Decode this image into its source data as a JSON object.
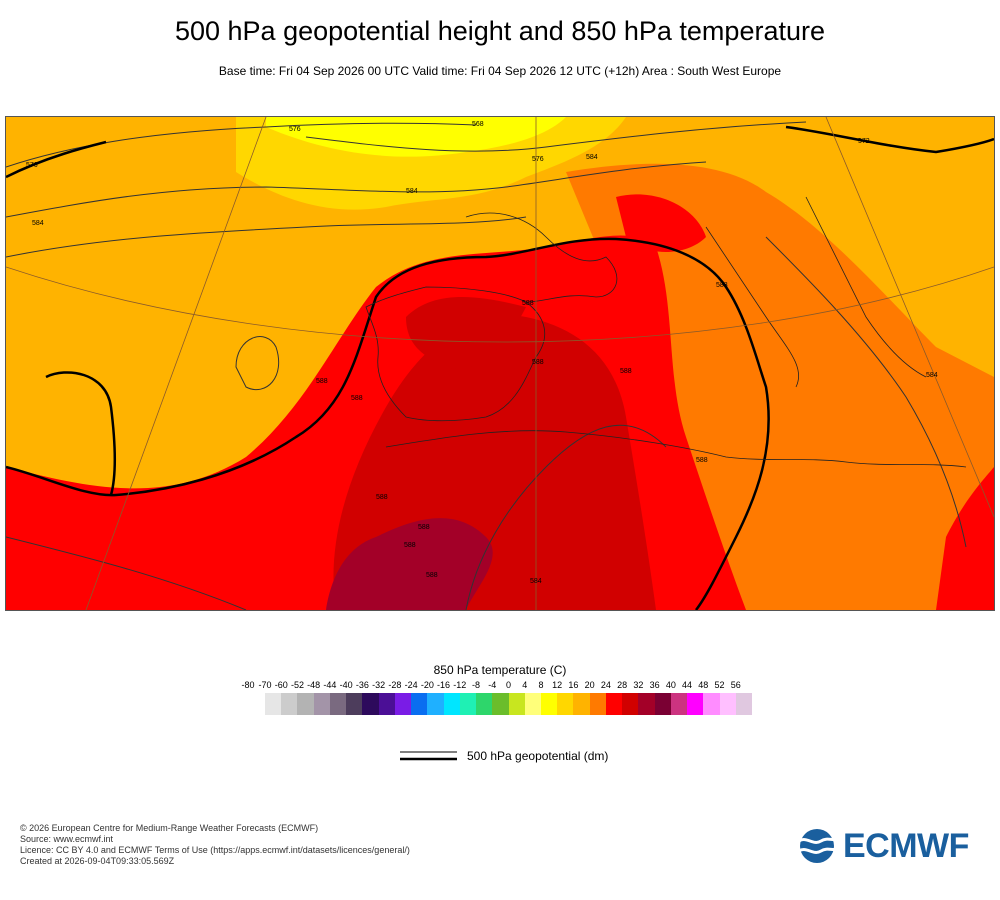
{
  "title": "500 hPa geopotential height and 850 hPa temperature",
  "subtitle": "Base time: Fri 04 Sep 2026 00 UTC Valid time: Fri 04 Sep 2026 12 UTC (+12h) Area : South West Europe",
  "map": {
    "contour_labels": [
      "576",
      "568",
      "584",
      "576",
      "584",
      "572",
      "584",
      "576",
      "588",
      "588",
      "588",
      "588",
      "588",
      "588",
      "584",
      "588",
      "588",
      "588",
      "588",
      "588",
      "584"
    ]
  },
  "colorbar": {
    "title": "850 hPa temperature (C)",
    "ticks": [
      "-80",
      "-70",
      "-60",
      "-52",
      "-48",
      "-44",
      "-40",
      "-36",
      "-32",
      "-28",
      "-24",
      "-20",
      "-16",
      "-12",
      "-8",
      "-4",
      "0",
      "4",
      "8",
      "12",
      "16",
      "20",
      "24",
      "28",
      "32",
      "36",
      "40",
      "44",
      "48",
      "52",
      "56"
    ],
    "colors": [
      "#e6e6e6",
      "#cccccc",
      "#b3b3b3",
      "#a394a8",
      "#7a6a80",
      "#4d3d5c",
      "#2d0a5c",
      "#4b0f96",
      "#7a1ce6",
      "#0a6ef0",
      "#1fb0ff",
      "#00e6ff",
      "#1ff0b4",
      "#2ed66b",
      "#6bbd2b",
      "#c8e61f",
      "#ffff7a",
      "#ffff00",
      "#ffd700",
      "#ffb300",
      "#ff7a00",
      "#ff0000",
      "#d10000",
      "#a30028",
      "#7a0033",
      "#cc3380",
      "#ff00ff",
      "#ff8cff",
      "#ffbfff",
      "#e0c8e0"
    ]
  },
  "legend": {
    "label": "500 hPa geopotential (dm)"
  },
  "footer": {
    "lines": [
      "© 2026 European Centre for Medium-Range Weather Forecasts (ECMWF)",
      "Source: www.ecmwf.int",
      "Licence: CC BY 4.0 and ECMWF Terms of Use (https://apps.ecmwf.int/datasets/licences/general/)",
      "Created at 2026-09-04T09:33:05.569Z"
    ]
  },
  "logo": {
    "text": "ECMWF",
    "color": "#1a5f9e"
  }
}
